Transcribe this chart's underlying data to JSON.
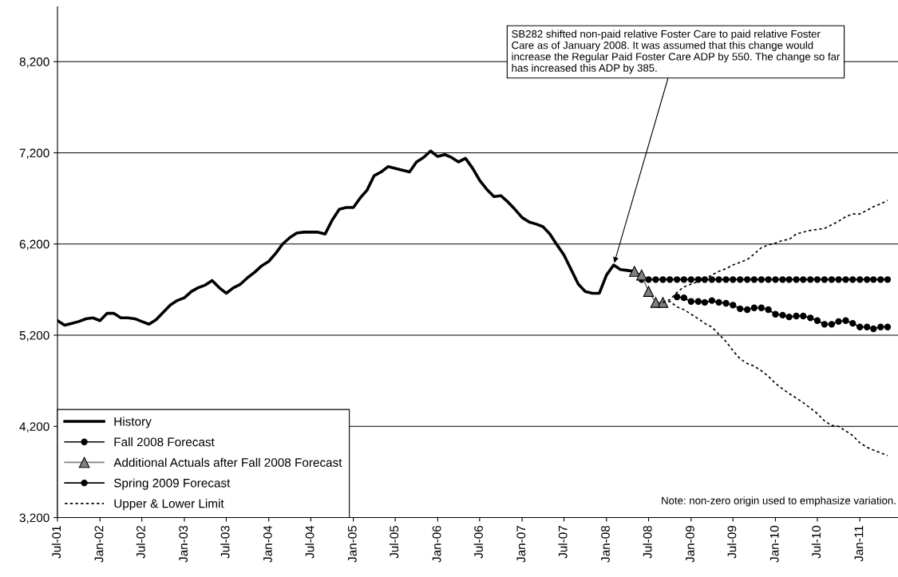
{
  "chart_data": {
    "type": "line",
    "xlim": [
      "2001-07-01",
      "2011-06-15"
    ],
    "ylim": [
      3200,
      8800
    ],
    "xticks": [
      {
        "value": "2001-07",
        "label": "Jul-01"
      },
      {
        "value": "2002-01",
        "label": "Jan-02"
      },
      {
        "value": "2002-07",
        "label": "Jul-02"
      },
      {
        "value": "2003-01",
        "label": "Jan-03"
      },
      {
        "value": "2003-07",
        "label": "Jul-03"
      },
      {
        "value": "2004-01",
        "label": "Jan-04"
      },
      {
        "value": "2004-07",
        "label": "Jul-04"
      },
      {
        "value": "2005-01",
        "label": "Jan-05"
      },
      {
        "value": "2005-07",
        "label": "Jul-05"
      },
      {
        "value": "2006-01",
        "label": "Jan-06"
      },
      {
        "value": "2006-07",
        "label": "Jul-06"
      },
      {
        "value": "2007-01",
        "label": "Jan-07"
      },
      {
        "value": "2007-07",
        "label": "Jul-07"
      },
      {
        "value": "2008-01",
        "label": "Jan-08"
      },
      {
        "value": "2008-07",
        "label": "Jul-08"
      },
      {
        "value": "2009-01",
        "label": "Jan-09"
      },
      {
        "value": "2009-07",
        "label": "Jul-09"
      },
      {
        "value": "2010-01",
        "label": "Jan-10"
      },
      {
        "value": "2010-07",
        "label": "Jul-10"
      },
      {
        "value": "2011-01",
        "label": "Jan-11"
      }
    ],
    "yticks": [
      {
        "value": 3200,
        "label": "3,200"
      },
      {
        "value": 4200,
        "label": "4,200"
      },
      {
        "value": 5200,
        "label": "5,200"
      },
      {
        "value": 6200,
        "label": "6,200"
      },
      {
        "value": 7200,
        "label": "7,200"
      },
      {
        "value": 8200,
        "label": "8,200"
      }
    ],
    "grid": "y",
    "legend": "bottom left",
    "annotations": [
      {
        "text": "SB282 shifted non-paid relative Foster Care to paid relative Foster Care as of January 2008. It was assumed that this change would increase the Regular Paid Foster Care ADP by 550. The change so far has increased this ADP by 385.",
        "x": "2008-02",
        "y": 5970
      },
      "Note: non-zero origin used to emphasize variation."
    ],
    "series": [
      {
        "name": "History",
        "color": "#000000",
        "marker": "none",
        "line_style": "solid",
        "x": [
          "2001-07",
          "2001-08",
          "2001-09",
          "2001-10",
          "2001-11",
          "2001-12",
          "2002-01",
          "2002-02",
          "2002-03",
          "2002-04",
          "2002-05",
          "2002-06",
          "2002-07",
          "2002-08",
          "2002-09",
          "2002-10",
          "2002-11",
          "2002-12",
          "2003-01",
          "2003-02",
          "2003-03",
          "2003-04",
          "2003-05",
          "2003-06",
          "2003-07",
          "2003-08",
          "2003-09",
          "2003-10",
          "2003-11",
          "2003-12",
          "2004-01",
          "2004-02",
          "2004-03",
          "2004-04",
          "2004-05",
          "2004-06",
          "2004-07",
          "2004-08",
          "2004-09",
          "2004-10",
          "2004-11",
          "2004-12",
          "2005-01",
          "2005-02",
          "2005-03",
          "2005-04",
          "2005-05",
          "2005-06",
          "2005-07",
          "2005-08",
          "2005-09",
          "2005-10",
          "2005-11",
          "2005-12",
          "2006-01",
          "2006-02",
          "2006-03",
          "2006-04",
          "2006-05",
          "2006-06",
          "2006-07",
          "2006-08",
          "2006-09",
          "2006-10",
          "2006-11",
          "2006-12",
          "2007-01",
          "2007-02",
          "2007-03",
          "2007-04",
          "2007-05",
          "2007-06",
          "2007-07",
          "2007-08",
          "2007-09",
          "2007-10",
          "2007-11",
          "2007-12",
          "2008-01",
          "2008-02",
          "2008-03",
          "2008-04",
          "2008-05"
        ],
        "values": [
          5360,
          5310,
          5330,
          5350,
          5380,
          5390,
          5360,
          5440,
          5440,
          5390,
          5390,
          5380,
          5350,
          5320,
          5370,
          5450,
          5530,
          5580,
          5610,
          5680,
          5720,
          5750,
          5800,
          5720,
          5660,
          5720,
          5760,
          5830,
          5890,
          5960,
          6010,
          6100,
          6200,
          6270,
          6320,
          6330,
          6330,
          6330,
          6310,
          6460,
          6580,
          6600,
          6600,
          6710,
          6790,
          6950,
          6990,
          7050,
          7030,
          7010,
          6990,
          7100,
          7150,
          7220,
          7160,
          7180,
          7150,
          7100,
          7140,
          7030,
          6900,
          6800,
          6720,
          6730,
          6660,
          6580,
          6490,
          6440,
          6420,
          6390,
          6310,
          6190,
          6080,
          5920,
          5760,
          5680,
          5660,
          5660,
          5860,
          5970,
          5920,
          5910,
          5900
        ]
      },
      {
        "name": "Fall 2008 Forecast",
        "color": "#000000",
        "marker": "circle",
        "line_style": "solid",
        "x": [
          "2008-06",
          "2008-07",
          "2008-08",
          "2008-09",
          "2008-10",
          "2008-11",
          "2008-12",
          "2009-01",
          "2009-02",
          "2009-03",
          "2009-04",
          "2009-05",
          "2009-06",
          "2009-07",
          "2009-08",
          "2009-09",
          "2009-10",
          "2009-11",
          "2009-12",
          "2010-01",
          "2010-02",
          "2010-03",
          "2010-04",
          "2010-05",
          "2010-06",
          "2010-07",
          "2010-08",
          "2010-09",
          "2010-10",
          "2010-11",
          "2010-12",
          "2011-01",
          "2011-02",
          "2011-03",
          "2011-04",
          "2011-05"
        ],
        "values": [
          5810,
          5810,
          5810,
          5810,
          5810,
          5810,
          5810,
          5810,
          5810,
          5810,
          5810,
          5810,
          5810,
          5810,
          5810,
          5810,
          5810,
          5810,
          5810,
          5810,
          5810,
          5810,
          5810,
          5810,
          5810,
          5810,
          5810,
          5810,
          5810,
          5810,
          5810,
          5810,
          5810,
          5810,
          5810,
          5810
        ]
      },
      {
        "name": "Additional Actuals after Fall 2008 Forecast",
        "color": "#808080",
        "marker": "triangle",
        "line_style": "solid",
        "x": [
          "2008-05",
          "2008-06",
          "2008-07",
          "2008-08",
          "2008-09"
        ],
        "values": [
          5900,
          5860,
          5680,
          5560,
          5560
        ]
      },
      {
        "name": "Spring 2009 Forecast",
        "color": "#000000",
        "marker": "circle",
        "line_style": "solid",
        "x": [
          "2008-11",
          "2008-12",
          "2009-01",
          "2009-02",
          "2009-03",
          "2009-04",
          "2009-05",
          "2009-06",
          "2009-07",
          "2009-08",
          "2009-09",
          "2009-10",
          "2009-11",
          "2009-12",
          "2010-01",
          "2010-02",
          "2010-03",
          "2010-04",
          "2010-05",
          "2010-06",
          "2010-07",
          "2010-08",
          "2010-09",
          "2010-10",
          "2010-11",
          "2010-12",
          "2011-01",
          "2011-02",
          "2011-03",
          "2011-04",
          "2011-05"
        ],
        "values": [
          5620,
          5610,
          5570,
          5570,
          5560,
          5580,
          5560,
          5550,
          5530,
          5490,
          5480,
          5500,
          5500,
          5480,
          5430,
          5420,
          5400,
          5410,
          5410,
          5390,
          5360,
          5320,
          5320,
          5350,
          5360,
          5330,
          5290,
          5290,
          5270,
          5290,
          5290
        ]
      },
      {
        "name": "Upper & Lower Limit",
        "color": "#000000",
        "marker": "none",
        "line_style": "dotted",
        "x": [
          "2008-09",
          "2008-10",
          "2008-11",
          "2008-12",
          "2009-01",
          "2009-02",
          "2009-03",
          "2009-04",
          "2009-05",
          "2009-06",
          "2009-07",
          "2009-08",
          "2009-09",
          "2009-10",
          "2009-11",
          "2009-12",
          "2010-01",
          "2010-02",
          "2010-03",
          "2010-04",
          "2010-05",
          "2010-06",
          "2010-07",
          "2010-08",
          "2010-09",
          "2010-10",
          "2010-11",
          "2010-12",
          "2011-01",
          "2011-02",
          "2011-03",
          "2011-04",
          "2011-05"
        ],
        "values": [
          5560,
          5590,
          5670,
          5730,
          5760,
          5790,
          5820,
          5860,
          5900,
          5930,
          5970,
          6000,
          6030,
          6090,
          6160,
          6190,
          6210,
          6240,
          6250,
          6310,
          6330,
          6350,
          6360,
          6370,
          6410,
          6450,
          6500,
          6530,
          6530,
          6570,
          6610,
          6640,
          6680
        ]
      },
      {
        "color": "#000000",
        "marker": "none",
        "line_style": "dotted",
        "x": [
          "2008-09",
          "2008-10",
          "2008-11",
          "2008-12",
          "2009-01",
          "2009-02",
          "2009-03",
          "2009-04",
          "2009-05",
          "2009-06",
          "2009-07",
          "2009-08",
          "2009-09",
          "2009-10",
          "2009-11",
          "2009-12",
          "2010-01",
          "2010-02",
          "2010-03",
          "2010-04",
          "2010-05",
          "2010-06",
          "2010-07",
          "2010-08",
          "2010-09",
          "2010-10",
          "2010-11",
          "2010-12",
          "2011-01",
          "2011-02",
          "2011-03",
          "2011-04",
          "2011-05"
        ],
        "values": [
          5560,
          5570,
          5510,
          5480,
          5430,
          5380,
          5330,
          5290,
          5210,
          5130,
          5030,
          4940,
          4890,
          4860,
          4810,
          4750,
          4670,
          4610,
          4560,
          4510,
          4460,
          4400,
          4340,
          4260,
          4210,
          4200,
          4150,
          4100,
          4020,
          3970,
          3940,
          3910,
          3880
        ]
      }
    ]
  }
}
